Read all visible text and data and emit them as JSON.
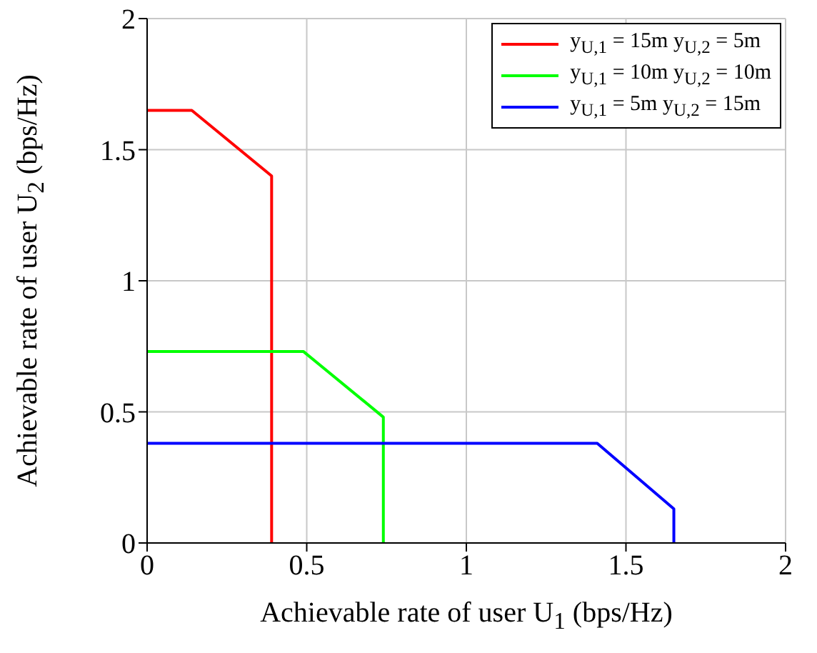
{
  "chart_data": {
    "type": "line",
    "xlabel": "Achievable rate of user U$_{1}$ (bps/Hz)",
    "ylabel": "Achievable rate of user U$_{2}$ (bps/Hz)",
    "xlim": [
      0,
      2
    ],
    "ylim": [
      0,
      2
    ],
    "xticks": [
      0,
      0.5,
      1,
      1.5,
      2
    ],
    "yticks": [
      0,
      0.5,
      1,
      1.5,
      2
    ],
    "grid": true,
    "legend": "top right",
    "marker": "none",
    "line_style": "solid",
    "series": [
      {
        "name": "y$_{U,1}$ = 15m y$_{U,2}$ = 5m",
        "color": "#ff0000",
        "x": [
          0,
          0.14,
          0.39,
          0.39
        ],
        "values": [
          1.65,
          1.65,
          1.4,
          0
        ]
      },
      {
        "name": "y$_{U,1}$ = 10m y$_{U,2}$ = 10m",
        "color": "#00ff00",
        "x": [
          0,
          0.49,
          0.74,
          0.74
        ],
        "values": [
          0.73,
          0.73,
          0.48,
          0
        ]
      },
      {
        "name": "y$_{U,1}$ = 5m y$_{U,2}$ = 15m",
        "color": "#0000ff",
        "x": [
          0,
          1.41,
          1.65,
          1.65
        ],
        "values": [
          0.38,
          0.38,
          0.13,
          0
        ]
      }
    ]
  }
}
